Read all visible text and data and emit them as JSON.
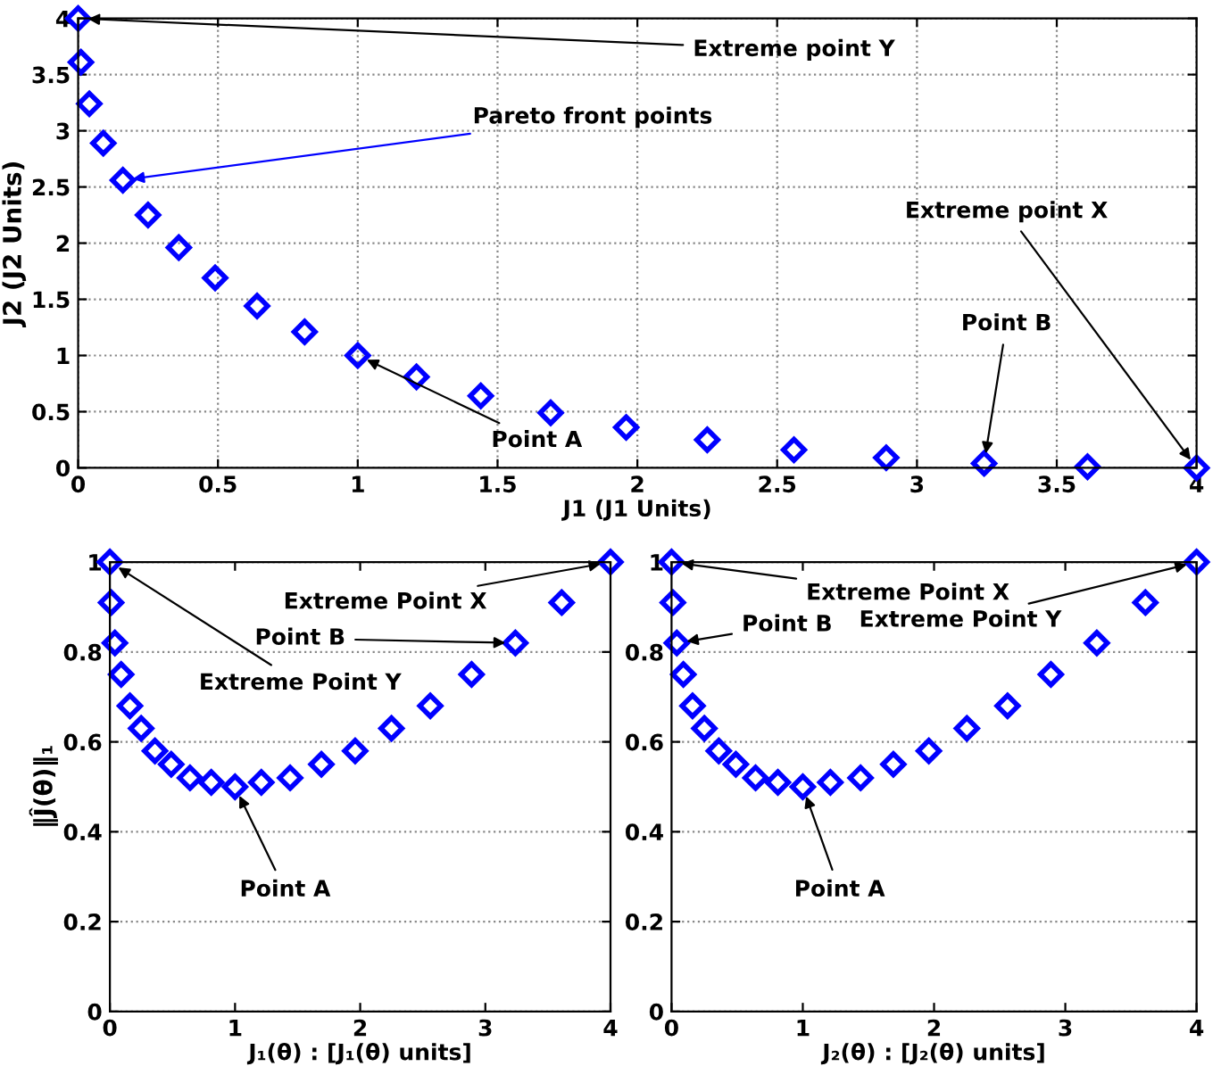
{
  "chart_data": [
    {
      "type": "scatter",
      "xlabel": "J1 (J1 Units)",
      "ylabel": "J2 (J2 Units)",
      "x": [
        0,
        0.01,
        0.04,
        0.09,
        0.16,
        0.25,
        0.36,
        0.49,
        0.64,
        0.81,
        1,
        1.21,
        1.44,
        1.69,
        1.96,
        2.25,
        2.56,
        2.89,
        3.24,
        3.61,
        4
      ],
      "series": [
        {
          "color": "#0000ff",
          "values": [
            4,
            3.61,
            3.24,
            2.89,
            2.56,
            2.25,
            1.96,
            1.69,
            1.44,
            1.21,
            1,
            0.81,
            0.64,
            0.49,
            0.36,
            0.25,
            0.16,
            0.09,
            0.04,
            0.01,
            0
          ]
        }
      ],
      "marker": "diamond",
      "grid": true,
      "xlim": [
        0,
        4
      ],
      "ylim": [
        0,
        4
      ],
      "xticks": [
        0,
        0.5,
        1,
        1.5,
        2,
        2.5,
        3,
        3.5,
        4
      ],
      "yticks": [
        0,
        0.5,
        1,
        1.5,
        2,
        2.5,
        3,
        3.5,
        4
      ],
      "annotations": [
        {
          "text": "Extreme point Y",
          "x": 0,
          "y": 4
        },
        {
          "text": "Pareto front points",
          "x": 0.16,
          "y": 2.56
        },
        {
          "text": "Point A",
          "x": 1,
          "y": 1
        },
        {
          "text": "Point B",
          "x": 3.24,
          "y": 0.04
        },
        {
          "text": "Extreme point X",
          "x": 4,
          "y": 0
        }
      ]
    },
    {
      "type": "scatter",
      "xlabel": "J₁(θ) : [J₁(θ) units]",
      "ylabel": "‖Ĵ(θ)‖₁",
      "x": [
        0,
        0.01,
        0.04,
        0.09,
        0.16,
        0.25,
        0.36,
        0.49,
        0.64,
        0.81,
        1,
        1.21,
        1.44,
        1.69,
        1.96,
        2.25,
        2.56,
        2.89,
        3.24,
        3.61,
        4
      ],
      "series": [
        {
          "color": "#0000ff",
          "values": [
            1,
            0.91,
            0.82,
            0.75,
            0.68,
            0.63,
            0.58,
            0.55,
            0.52,
            0.51,
            0.5,
            0.51,
            0.52,
            0.55,
            0.58,
            0.63,
            0.68,
            0.75,
            0.82,
            0.91,
            1
          ]
        }
      ],
      "marker": "diamond",
      "grid": "y",
      "xlim": [
        0,
        4
      ],
      "ylim": [
        0,
        1
      ],
      "xticks": [
        0,
        1,
        2,
        3,
        4
      ],
      "yticks": [
        0,
        0.2,
        0.4,
        0.6,
        0.8,
        1
      ],
      "annotations": [
        {
          "text": "Extreme Point Y",
          "x": 0,
          "y": 1
        },
        {
          "text": "Point A",
          "x": 1,
          "y": 0.5
        },
        {
          "text": "Point B",
          "x": 3.24,
          "y": 0.82
        },
        {
          "text": "Extreme Point X",
          "x": 4,
          "y": 1
        }
      ]
    },
    {
      "type": "scatter",
      "xlabel": "J₂(θ) : [J₂(θ) units]",
      "x": [
        0,
        0.01,
        0.04,
        0.09,
        0.16,
        0.25,
        0.36,
        0.49,
        0.64,
        0.81,
        1,
        1.21,
        1.44,
        1.69,
        1.96,
        2.25,
        2.56,
        2.89,
        3.24,
        3.61,
        4
      ],
      "series": [
        {
          "color": "#0000ff",
          "values": [
            1,
            0.91,
            0.82,
            0.75,
            0.68,
            0.63,
            0.58,
            0.55,
            0.52,
            0.51,
            0.5,
            0.51,
            0.52,
            0.55,
            0.58,
            0.63,
            0.68,
            0.75,
            0.82,
            0.91,
            1
          ]
        }
      ],
      "marker": "diamond",
      "grid": "y",
      "xlim": [
        0,
        4
      ],
      "ylim": [
        0,
        1
      ],
      "xticks": [
        0,
        1,
        2,
        3,
        4
      ],
      "yticks": [
        0,
        0.2,
        0.4,
        0.6,
        0.8,
        1
      ],
      "annotations": [
        {
          "text": "Extreme Point X",
          "x": 0,
          "y": 1
        },
        {
          "text": "Point B",
          "x": 0.04,
          "y": 0.82
        },
        {
          "text": "Point A",
          "x": 1,
          "y": 0.5
        },
        {
          "text": "Extreme Point Y",
          "x": 4,
          "y": 1
        }
      ]
    }
  ]
}
